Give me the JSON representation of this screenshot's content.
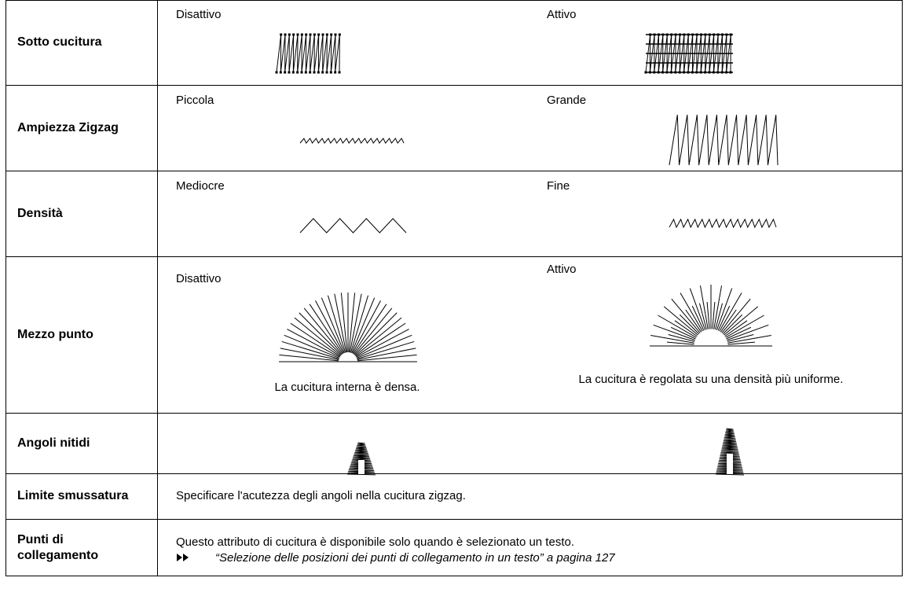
{
  "table": {
    "rows": [
      {
        "label": "Sotto cucitura",
        "left": "Disattivo",
        "right": "Attivo"
      },
      {
        "label": "Ampiezza Zigzag",
        "left": "Piccola",
        "right": "Grande"
      },
      {
        "label": "Densità",
        "left": "Mediocre",
        "right": "Fine"
      },
      {
        "label": "Mezzo punto",
        "left": "Disattivo",
        "right": "Attivo",
        "left_note": "La cucitura interna è densa.",
        "right_note": "La cucitura è regolata su una densità più uniforme."
      },
      {
        "label": "Angoli nitidi"
      },
      {
        "label": "Limite smussatura",
        "text": "Specificare l'acutezza degli angoli nella cucitura zigzag."
      },
      {
        "label": "Punti di collegamento",
        "text": "Questo attributo di cucitura è disponibile solo quando è selezionato un testo.",
        "link": "“Selezione delle posizioni dei punti di collegamento in un testo” a pagina 127"
      }
    ]
  }
}
